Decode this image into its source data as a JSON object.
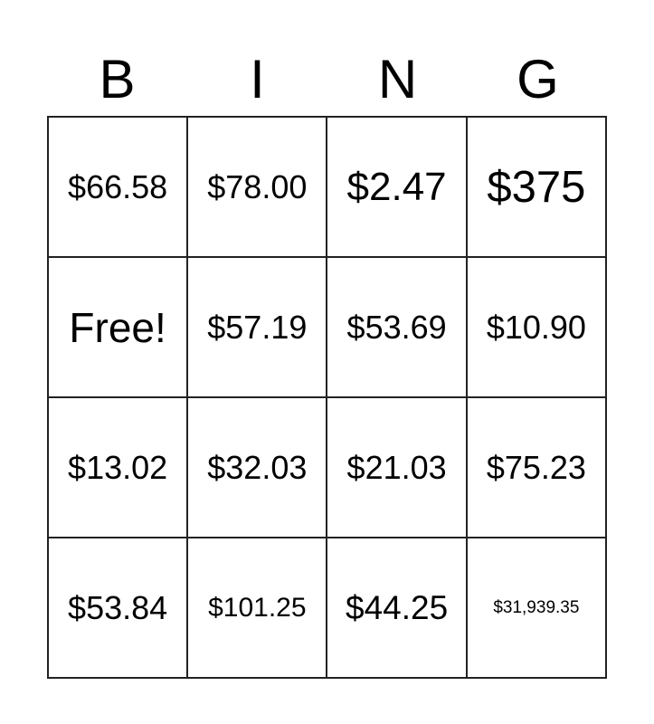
{
  "header": {
    "letters": [
      "B",
      "I",
      "N",
      "G"
    ]
  },
  "cells": [
    [
      "$66.58",
      "$78.00",
      "$2.47",
      "$375"
    ],
    [
      "Free!",
      "$57.19",
      "$53.69",
      "$10.90"
    ],
    [
      "$13.02",
      "$32.03",
      "$21.03",
      "$75.23"
    ],
    [
      "$53.84",
      "$101.25",
      "$44.25",
      "$31,939.35"
    ]
  ]
}
